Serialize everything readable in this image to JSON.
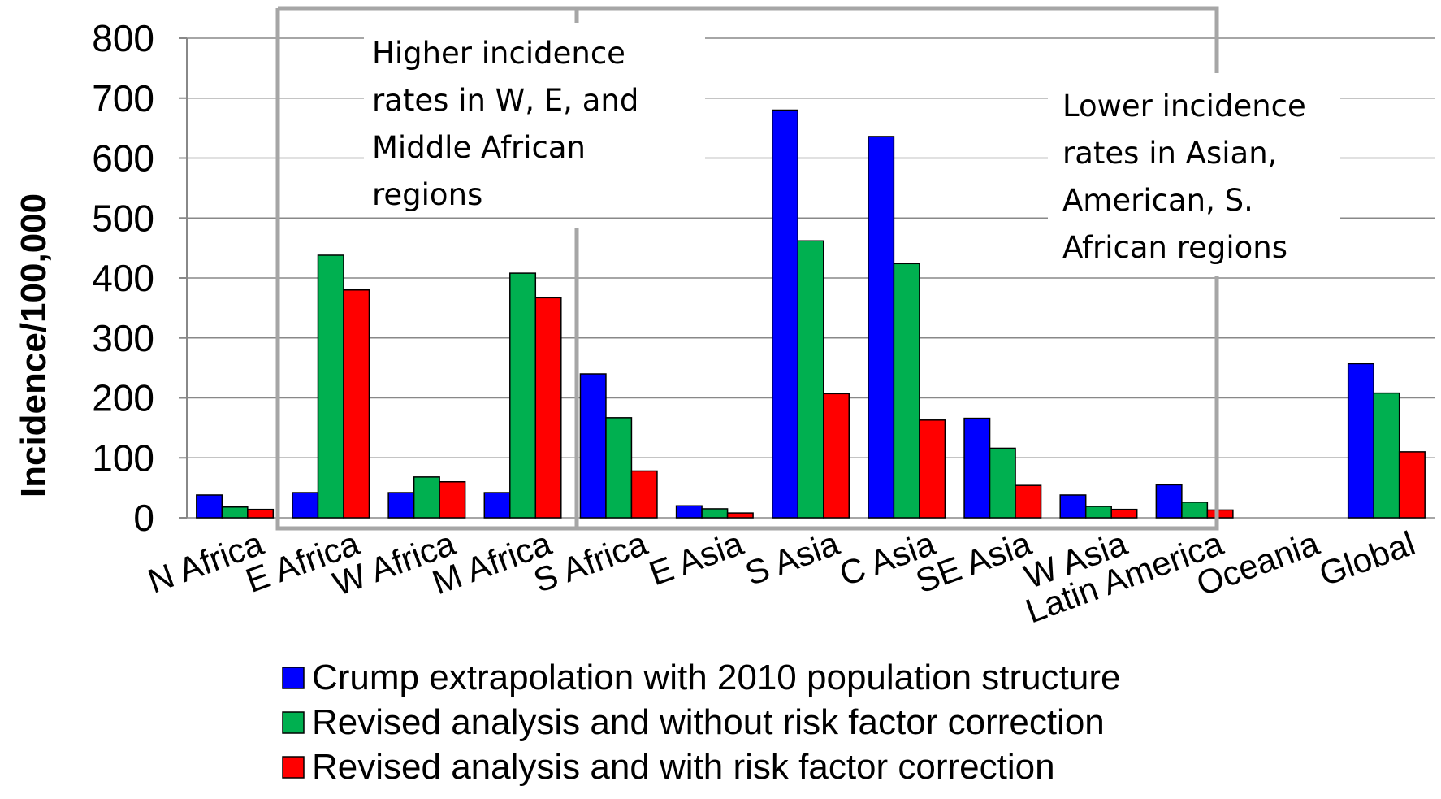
{
  "chart_data": {
    "type": "bar",
    "title": "",
    "xlabel": "",
    "ylabel": "Incidence/100,000",
    "ylim": [
      0,
      800
    ],
    "yticks": [
      "0",
      "100",
      "200",
      "300",
      "400",
      "500",
      "600",
      "700",
      "800"
    ],
    "grid": true,
    "legend_position": "bottom",
    "categories": [
      "N Africa",
      "E Africa",
      "W Africa",
      "M Africa",
      "S Africa",
      "E Asia",
      "S Asia",
      "C Asia",
      "SE Asia",
      "W Asia",
      "Latin America",
      "Oceania",
      "Global"
    ],
    "series": [
      {
        "name": "Crump extrapolation with 2010 population structure",
        "color": "#0000ff",
        "values": [
          38,
          42,
          42,
          42,
          240,
          20,
          680,
          636,
          166,
          38,
          55,
          0,
          257
        ]
      },
      {
        "name": "Revised analysis and without risk factor correction",
        "color": "#00b050",
        "values": [
          18,
          438,
          68,
          408,
          167,
          15,
          462,
          424,
          116,
          19,
          26,
          0,
          208
        ]
      },
      {
        "name": "Revised analysis and with risk factor correction",
        "color": "#ff0000",
        "values": [
          14,
          380,
          60,
          367,
          78,
          8,
          207,
          163,
          54,
          14,
          13,
          0,
          110
        ]
      }
    ],
    "annotations": [
      {
        "lines": [
          "Higher incidence",
          "rates in W, E, and",
          "Middle African",
          "regions"
        ]
      },
      {
        "lines": [
          "Lower incidence",
          "rates in Asian,",
          "American, S.",
          "African regions"
        ]
      }
    ]
  }
}
